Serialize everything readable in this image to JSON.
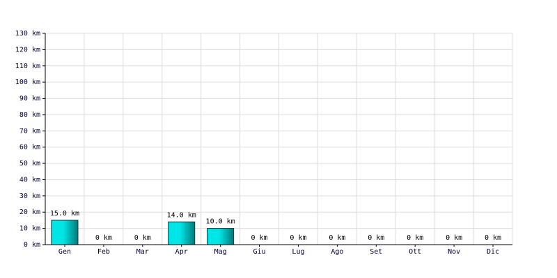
{
  "chart_data": {
    "type": "bar",
    "categories": [
      "Gen",
      "Feb",
      "Mar",
      "Apr",
      "Mag",
      "Giu",
      "Lug",
      "Ago",
      "Set",
      "Ott",
      "Nov",
      "Dic"
    ],
    "values": [
      15,
      0,
      0,
      14,
      10,
      0,
      0,
      0,
      0,
      0,
      0,
      0
    ],
    "value_labels": [
      "15.0 km",
      "0 km",
      "0 km",
      "14.0 km",
      "10.0 km",
      "0 km",
      "0 km",
      "0 km",
      "0 km",
      "0 km",
      "0 km",
      "0 km"
    ],
    "color": "#00e5e5",
    "ylim": [
      0,
      130
    ],
    "yticks": [
      {
        "value": 0,
        "label": "0 km"
      },
      {
        "value": 10,
        "label": "10 km"
      },
      {
        "value": 20,
        "label": "20 km"
      },
      {
        "value": 30,
        "label": "30 km"
      },
      {
        "value": 40,
        "label": "40 km"
      },
      {
        "value": 50,
        "label": "50 km"
      },
      {
        "value": 60,
        "label": "60 km"
      },
      {
        "value": 70,
        "label": "70 km"
      },
      {
        "value": 80,
        "label": "80 km"
      },
      {
        "value": 90,
        "label": "90 km"
      },
      {
        "value": 100,
        "label": "100 km"
      },
      {
        "value": 110,
        "label": "110 km"
      },
      {
        "value": 120,
        "label": "120 km"
      },
      {
        "value": 130,
        "label": "130 km"
      }
    ],
    "grid": true
  }
}
